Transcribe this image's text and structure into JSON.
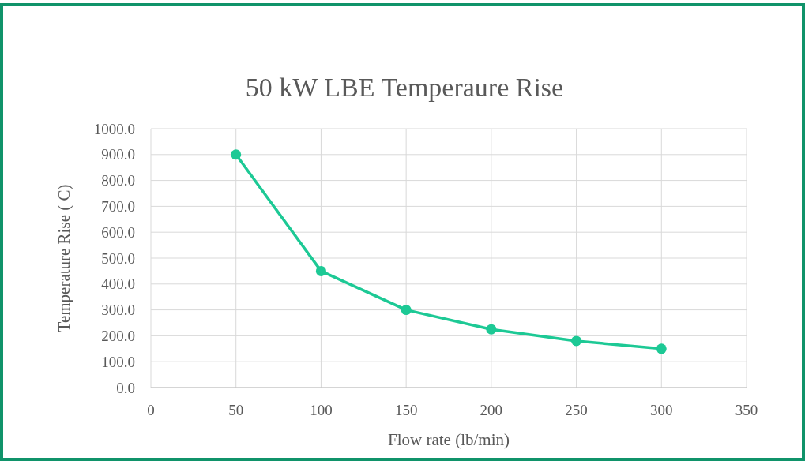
{
  "chart_data": {
    "type": "line",
    "title": "50 kW LBE Temperaure Rise",
    "xlabel": "Flow rate (lb/min)",
    "ylabel": "Temperature Rise ( C)",
    "x": [
      50,
      100,
      150,
      200,
      250,
      300
    ],
    "series": [
      {
        "color": "#1dc995",
        "values": [
          900,
          450,
          300,
          225,
          180,
          150
        ]
      }
    ],
    "xlim": [
      0,
      350
    ],
    "xticks": [
      0,
      50,
      100,
      150,
      200,
      250,
      300,
      350
    ],
    "ylim": [
      0,
      1000
    ],
    "yticks": [
      {
        "value": 0,
        "label": "0.0"
      },
      {
        "value": 100,
        "label": "100.0"
      },
      {
        "value": 200,
        "label": "200.0"
      },
      {
        "value": 300,
        "label": "300.0"
      },
      {
        "value": 400,
        "label": "400.0"
      },
      {
        "value": 500,
        "label": "500.0"
      },
      {
        "value": 600,
        "label": "600.0"
      },
      {
        "value": 700,
        "label": "700.0"
      },
      {
        "value": 800,
        "label": "800.0"
      },
      {
        "value": 900,
        "label": "900.0"
      },
      {
        "value": 1000,
        "label": "1000.0"
      }
    ],
    "grid": true,
    "marker": "circle",
    "line_style": "solid"
  }
}
